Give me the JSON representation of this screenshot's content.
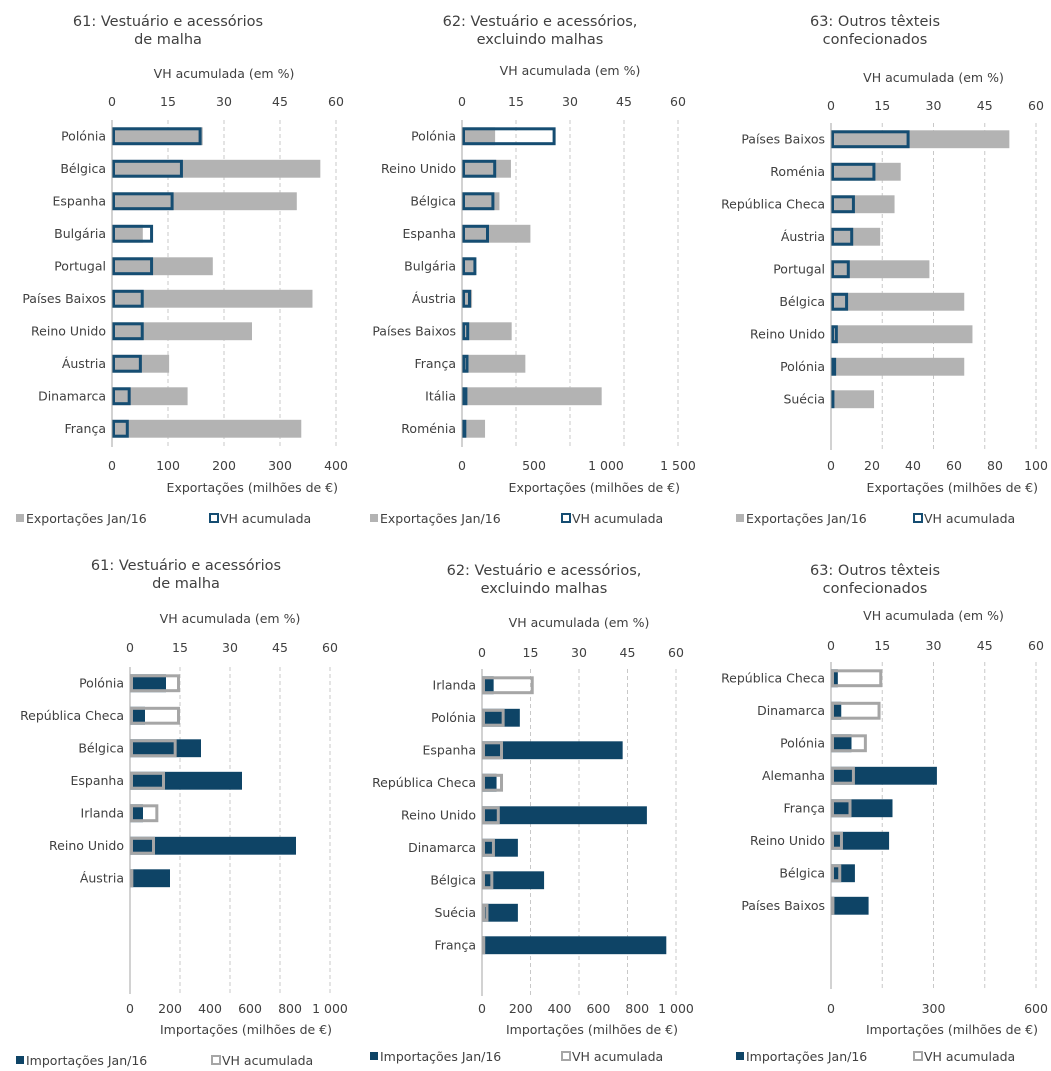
{
  "colors": {
    "export_bar": "#b3b3b3",
    "vh_export_outline": "#154d72",
    "import_bar": "#0e4466",
    "vh_import_outline": "#a6a6a6",
    "grid": "#c8c8c8",
    "axis": "#a6a6a6"
  },
  "chart_data": [
    {
      "type": "bar",
      "title_lines": [
        "61: Vestuário e acessórios",
        "de malha"
      ],
      "xlabel": "Exportações (milhões de €)",
      "secondary_xlabel": "VH acumulada (em %)",
      "xlim": [
        0,
        400
      ],
      "xticks": [
        0,
        100,
        200,
        300,
        400
      ],
      "xtick_labels": [
        "0",
        "100",
        "200",
        "300",
        "400"
      ],
      "secondary_xlim": [
        0,
        60
      ],
      "secondary_xticks": [
        0,
        15,
        30,
        45,
        60
      ],
      "categories": [
        "Polónia",
        "Bélgica",
        "Espanha",
        "Bulgária",
        "Portugal",
        "Países Baixos",
        "Reino Unido",
        "Áustria",
        "Dinamarca",
        "França"
      ],
      "series": [
        {
          "name": "Exportações Jan/16",
          "axis": "primary",
          "values": [
            162,
            372,
            330,
            55,
            180,
            358,
            250,
            102,
            135,
            338
          ]
        },
        {
          "name": "VH acumulada",
          "axis": "secondary",
          "values": [
            24,
            19,
            16.5,
            11,
            11,
            8.5,
            8.5,
            8,
            5,
            4.5
          ]
        }
      ],
      "legend": [
        "Exportações Jan/16",
        "VH acumulada"
      ],
      "legend_position": "bottom"
    },
    {
      "type": "bar",
      "title_lines": [
        "62: Vestuário e acessórios,",
        "excluindo malhas"
      ],
      "xlabel": "Exportações (milhões de €)",
      "secondary_xlabel": "VH acumulada (em %)",
      "xlim": [
        0,
        1500
      ],
      "xticks": [
        0,
        500,
        1000,
        1500
      ],
      "xtick_labels": [
        "0",
        "500",
        "1 000",
        "1 500"
      ],
      "secondary_xlim": [
        0,
        60
      ],
      "secondary_xticks": [
        0,
        15,
        30,
        45,
        60
      ],
      "categories": [
        "Polónia",
        "Reino Unido",
        "Bélgica",
        "Espanha",
        "Bulgária",
        "Áustria",
        "Países Baixos",
        "França",
        "Itália",
        "Roménia"
      ],
      "series": [
        {
          "name": "Exportações Jan/16",
          "axis": "primary",
          "values": [
            230,
            340,
            260,
            475,
            90,
            70,
            345,
            440,
            970,
            160
          ]
        },
        {
          "name": "VH acumulada",
          "axis": "secondary",
          "values": [
            26,
            9.5,
            9,
            7.5,
            4,
            2.5,
            2,
            1.8,
            1.5,
            1.2
          ]
        }
      ],
      "legend": [
        "Exportações Jan/16",
        "VH acumulada"
      ],
      "legend_position": "bottom"
    },
    {
      "type": "bar",
      "title_lines": [
        "63: Outros têxteis",
        "confecionados"
      ],
      "xlabel": "Exportações (milhões de €)",
      "secondary_xlabel": "VH acumulada (em %)",
      "xlim": [
        0,
        100
      ],
      "xticks": [
        0,
        20,
        40,
        60,
        80,
        100
      ],
      "xtick_labels": [
        "0",
        "20",
        "40",
        "60",
        "80",
        "100"
      ],
      "secondary_xlim": [
        0,
        60
      ],
      "secondary_xticks": [
        0,
        15,
        30,
        45,
        60
      ],
      "categories": [
        "Países Baixos",
        "Roménia",
        "República Checa",
        "Áustria",
        "Portugal",
        "Bélgica",
        "Reino Unido",
        "Polónia",
        "Suécia"
      ],
      "series": [
        {
          "name": "Exportações Jan/16",
          "axis": "primary",
          "values": [
            87,
            34,
            31,
            24,
            48,
            65,
            69,
            65,
            21
          ]
        },
        {
          "name": "VH acumulada",
          "axis": "secondary",
          "values": [
            23,
            13,
            7,
            6.5,
            5.5,
            5,
            2,
            1.5,
            1
          ]
        }
      ],
      "legend": [
        "Exportações Jan/16",
        "VH acumulada"
      ],
      "legend_position": "bottom"
    },
    {
      "type": "bar",
      "title_lines": [
        "61: Vestuário e acessórios",
        "de malha"
      ],
      "xlabel": "Importações (milhões de €)",
      "secondary_xlabel": "VH acumulada (em %)",
      "xlim": [
        0,
        1000
      ],
      "xticks": [
        0,
        200,
        400,
        600,
        800,
        1000
      ],
      "xtick_labels": [
        "0",
        "200",
        "400",
        "600",
        "800",
        "1 000"
      ],
      "secondary_xlim": [
        0,
        60
      ],
      "secondary_xticks": [
        0,
        15,
        30,
        45,
        60
      ],
      "categories": [
        "Polónia",
        "República Checa",
        "Bélgica",
        "Espanha",
        "Irlanda",
        "Reino Unido",
        "Áustria"
      ],
      "series": [
        {
          "name": "Importações Jan/16",
          "axis": "primary",
          "values": [
            180,
            75,
            355,
            560,
            65,
            830,
            200
          ]
        },
        {
          "name": "VH acumulada",
          "axis": "secondary",
          "values": [
            15,
            15,
            14,
            10.5,
            8.5,
            7.5,
            1
          ]
        }
      ],
      "legend": [
        "Importações Jan/16",
        "VH acumulada"
      ],
      "legend_position": "bottom"
    },
    {
      "type": "bar",
      "title_lines": [
        "62: Vestuário e acessórios,",
        "excluindo malhas"
      ],
      "xlabel": "Importações (milhões de €)",
      "secondary_xlabel": "VH acumulada (em %)",
      "xlim": [
        0,
        1000
      ],
      "xticks": [
        0,
        200,
        400,
        600,
        800,
        1000
      ],
      "xtick_labels": [
        "0",
        "200",
        "400",
        "600",
        "800",
        "1 000"
      ],
      "secondary_xlim": [
        0,
        60
      ],
      "secondary_xticks": [
        0,
        15,
        30,
        45,
        60
      ],
      "categories": [
        "Irlanda",
        "Polónia",
        "Espanha",
        "República Checa",
        "Reino Unido",
        "Dinamarca",
        "Bélgica",
        "Suécia",
        "França"
      ],
      "series": [
        {
          "name": "Importações Jan/16",
          "axis": "primary",
          "values": [
            60,
            195,
            725,
            75,
            850,
            185,
            320,
            185,
            950
          ]
        },
        {
          "name": "VH acumulada",
          "axis": "secondary",
          "values": [
            16,
            7,
            6.5,
            6.5,
            5.5,
            4,
            3.5,
            2,
            1
          ]
        }
      ],
      "legend": [
        "Importações Jan/16",
        "VH acumulada"
      ],
      "legend_position": "bottom"
    },
    {
      "type": "bar",
      "title_lines": [
        "63: Outros têxteis",
        "confecionados"
      ],
      "xlabel": "Importações (milhões de €)",
      "secondary_xlabel": "VH acumulada (em %)",
      "xlim": [
        0,
        600
      ],
      "xticks": [
        0,
        300,
        600
      ],
      "xtick_labels": [
        "0",
        "300",
        "600"
      ],
      "secondary_xlim": [
        0,
        60
      ],
      "secondary_xticks": [
        0,
        15,
        30,
        45,
        60
      ],
      "categories": [
        "República Checa",
        "Dinamarca",
        "Polónia",
        "Alemanha",
        "França",
        "Reino Unido",
        "Bélgica",
        "Países Baixos"
      ],
      "series": [
        {
          "name": "Importações Jan/16",
          "axis": "primary",
          "values": [
            20,
            30,
            60,
            310,
            180,
            170,
            70,
            110
          ]
        },
        {
          "name": "VH acumulada",
          "axis": "secondary",
          "values": [
            15,
            14.5,
            10.5,
            7,
            6,
            3.5,
            3,
            1
          ]
        }
      ],
      "legend": [
        "Importações Jan/16",
        "VH acumulada"
      ],
      "legend_position": "bottom"
    }
  ]
}
